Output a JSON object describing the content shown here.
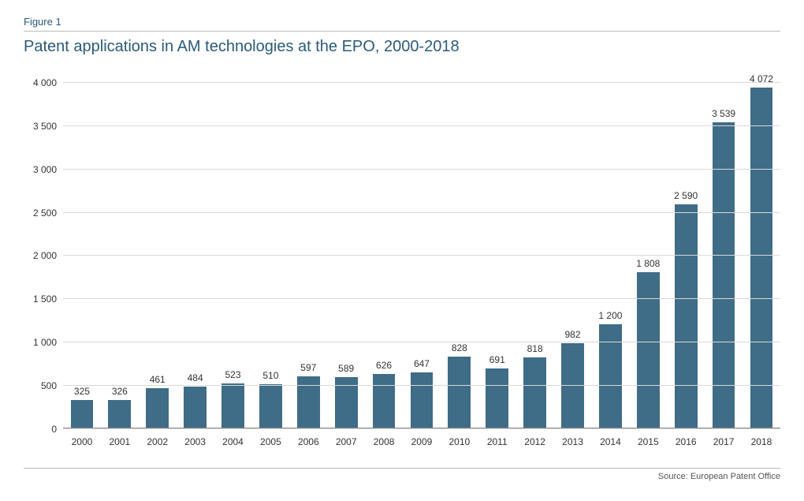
{
  "figure_label": "Figure 1",
  "title": "Patent applications in AM technologies at the EPO, 2000-2018",
  "source": "Source: European Patent Office",
  "chart": {
    "type": "bar",
    "categories": [
      "2000",
      "2001",
      "2002",
      "2003",
      "2004",
      "2005",
      "2006",
      "2007",
      "2008",
      "2009",
      "2010",
      "2011",
      "2012",
      "2013",
      "2014",
      "2015",
      "2016",
      "2017",
      "2018"
    ],
    "values": [
      325,
      326,
      461,
      484,
      523,
      510,
      597,
      589,
      626,
      647,
      828,
      691,
      818,
      982,
      1200,
      1808,
      2590,
      3539,
      4072
    ],
    "value_labels": [
      "325",
      "326",
      "461",
      "484",
      "523",
      "510",
      "597",
      "589",
      "626",
      "647",
      "828",
      "691",
      "818",
      "982",
      "1 200",
      "1 808",
      "2 590",
      "3 539",
      "4 072"
    ],
    "bar_color": "#3f6c87",
    "ylim": [
      0,
      4100
    ],
    "ytick_step": 500,
    "ytick_labels": [
      "0",
      "500",
      "1 000",
      "1 500",
      "2 000",
      "2 500",
      "3 000",
      "3 500",
      "4 000"
    ],
    "grid_color": "#d9d9d9",
    "background_color": "#ffffff",
    "bar_width": 0.6,
    "title_fontsize": 20,
    "title_color": "#2b5a7a",
    "label_fontsize": 12,
    "value_label_fontsize": 12
  }
}
